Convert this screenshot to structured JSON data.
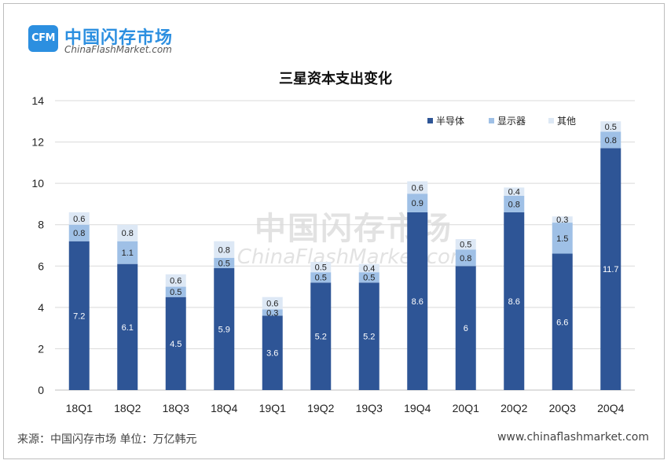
{
  "logo": {
    "badge": "CFM",
    "name_cn": "中国闪存市场",
    "name_en": "ChinaFlashMarket.com"
  },
  "watermark": {
    "cn": "中国闪存市场",
    "en": "ChinaFlashMarket.com"
  },
  "footer": {
    "source": "来源：中国闪存市场  单位：万亿韩元",
    "url": "www.chinaflashmarket.com"
  },
  "chart_data": {
    "type": "bar",
    "stacked": true,
    "title": "三星资本支出变化",
    "xlabel": "",
    "ylabel": "",
    "ylim": [
      0,
      14
    ],
    "yticks": [
      "0",
      "2",
      "4",
      "6",
      "8",
      "10",
      "12",
      "14"
    ],
    "grid": true,
    "legend_position": "top-right",
    "categories": [
      "18Q1",
      "18Q2",
      "18Q3",
      "18Q4",
      "19Q1",
      "19Q2",
      "19Q3",
      "19Q4",
      "20Q1",
      "20Q2",
      "20Q3",
      "20Q4"
    ],
    "series": [
      {
        "name": "半导体",
        "color": "#2e5596",
        "values": [
          7.2,
          6.1,
          4.5,
          5.9,
          3.6,
          5.2,
          5.2,
          8.6,
          6,
          8.6,
          6.6,
          11.7
        ],
        "labels": [
          "7.2",
          "6.1",
          "4.5",
          "5.9",
          "3.6",
          "5.2",
          "5.2",
          "8.6",
          "6",
          "8.6",
          "6.6",
          "11.7"
        ]
      },
      {
        "name": "显示器",
        "color": "#9fc0e6",
        "values": [
          0.8,
          1.1,
          0.5,
          0.5,
          0.3,
          0.5,
          0.5,
          0.9,
          0.8,
          0.8,
          1.5,
          0.8
        ],
        "labels": [
          "0.8",
          "1.1",
          "0.5",
          "0.5",
          "0.3",
          "0.5",
          "0.5",
          "0.9",
          "0.8",
          "0.8",
          "1.5",
          "0.8"
        ]
      },
      {
        "name": "其他",
        "color": "#dde8f5",
        "values": [
          0.6,
          0.8,
          0.6,
          0.8,
          0.6,
          0.5,
          0.4,
          0.6,
          0.5,
          0.4,
          0.3,
          0.5
        ],
        "labels": [
          "0.6",
          "0.8",
          "0.6",
          "0.8",
          "0.6",
          "0.5",
          "0.4",
          "0.6",
          "0.5",
          "0.4",
          "0.3",
          "0.5"
        ]
      }
    ]
  }
}
